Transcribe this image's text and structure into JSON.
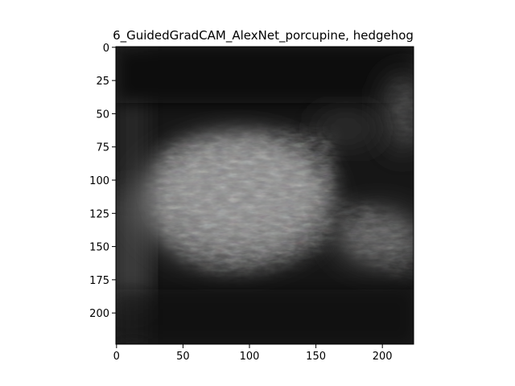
{
  "chart_data": {
    "type": "heatmap",
    "title": "6_GuidedGradCAM_AlexNet_porcupine, hedgehog",
    "xlabel": "",
    "ylabel": "",
    "xlim": [
      0,
      224
    ],
    "ylim": [
      224,
      0
    ],
    "image_size": [
      224,
      224
    ],
    "colormap": "grayscale with faint color fringes",
    "background_color": "#1a1a1a",
    "x_ticks": [
      0,
      50,
      100,
      150,
      200
    ],
    "y_ticks": [
      0,
      25,
      50,
      75,
      100,
      125,
      150,
      175,
      200
    ],
    "grid": false,
    "legend": "none"
  }
}
